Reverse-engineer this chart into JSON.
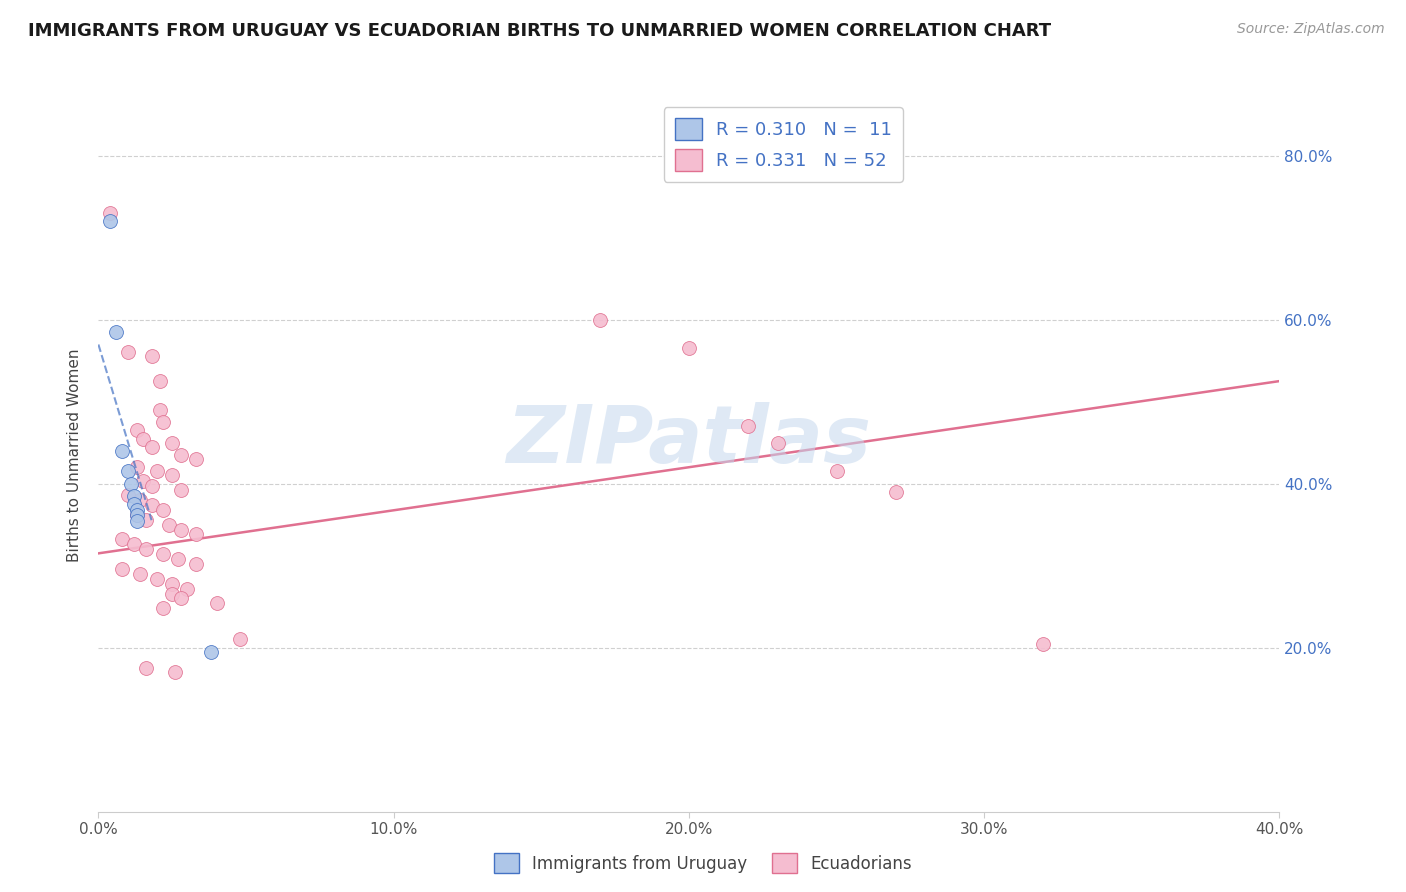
{
  "title": "IMMIGRANTS FROM URUGUAY VS ECUADORIAN BIRTHS TO UNMARRIED WOMEN CORRELATION CHART",
  "source": "Source: ZipAtlas.com",
  "ylabel": "Births to Unmarried Women",
  "legend1_R": "0.310",
  "legend1_N": "11",
  "legend2_R": "0.331",
  "legend2_N": "52",
  "blue_color": "#aec6e8",
  "pink_color": "#f5bdd0",
  "blue_line_color": "#4472c4",
  "pink_line_color": "#e07090",
  "blue_scatter": [
    [
      0.004,
      0.72
    ],
    [
      0.006,
      0.585
    ],
    [
      0.008,
      0.44
    ],
    [
      0.01,
      0.415
    ],
    [
      0.011,
      0.4
    ],
    [
      0.012,
      0.385
    ],
    [
      0.012,
      0.375
    ],
    [
      0.013,
      0.368
    ],
    [
      0.013,
      0.362
    ],
    [
      0.013,
      0.355
    ],
    [
      0.038,
      0.195
    ]
  ],
  "pink_scatter": [
    [
      0.004,
      0.73
    ],
    [
      0.01,
      0.56
    ],
    [
      0.018,
      0.555
    ],
    [
      0.021,
      0.525
    ],
    [
      0.021,
      0.49
    ],
    [
      0.022,
      0.475
    ],
    [
      0.013,
      0.465
    ],
    [
      0.015,
      0.455
    ],
    [
      0.025,
      0.45
    ],
    [
      0.018,
      0.445
    ],
    [
      0.028,
      0.435
    ],
    [
      0.033,
      0.43
    ],
    [
      0.013,
      0.42
    ],
    [
      0.02,
      0.415
    ],
    [
      0.025,
      0.41
    ],
    [
      0.015,
      0.403
    ],
    [
      0.018,
      0.397
    ],
    [
      0.028,
      0.392
    ],
    [
      0.01,
      0.386
    ],
    [
      0.014,
      0.38
    ],
    [
      0.018,
      0.374
    ],
    [
      0.022,
      0.368
    ],
    [
      0.013,
      0.362
    ],
    [
      0.016,
      0.356
    ],
    [
      0.024,
      0.35
    ],
    [
      0.028,
      0.344
    ],
    [
      0.033,
      0.338
    ],
    [
      0.008,
      0.332
    ],
    [
      0.012,
      0.326
    ],
    [
      0.016,
      0.32
    ],
    [
      0.022,
      0.314
    ],
    [
      0.027,
      0.308
    ],
    [
      0.033,
      0.302
    ],
    [
      0.008,
      0.296
    ],
    [
      0.014,
      0.29
    ],
    [
      0.02,
      0.284
    ],
    [
      0.025,
      0.278
    ],
    [
      0.03,
      0.272
    ],
    [
      0.025,
      0.266
    ],
    [
      0.028,
      0.26
    ],
    [
      0.04,
      0.254
    ],
    [
      0.022,
      0.248
    ],
    [
      0.048,
      0.21
    ],
    [
      0.016,
      0.175
    ],
    [
      0.026,
      0.17
    ],
    [
      0.17,
      0.6
    ],
    [
      0.2,
      0.565
    ],
    [
      0.22,
      0.47
    ],
    [
      0.23,
      0.45
    ],
    [
      0.25,
      0.415
    ],
    [
      0.27,
      0.39
    ],
    [
      0.32,
      0.205
    ]
  ],
  "watermark": "ZIPatlas",
  "xlim": [
    0.0,
    0.4
  ],
  "ylim": [
    0.0,
    0.87
  ],
  "pink_line_x": [
    0.0,
    0.4
  ],
  "pink_line_y": [
    0.315,
    0.525
  ],
  "blue_line_x_start": 0.0,
  "blue_line_x_end": 0.018,
  "grid_yticks": [
    0.2,
    0.4,
    0.6,
    0.8
  ],
  "xticks": [
    0.0,
    0.1,
    0.2,
    0.3,
    0.4
  ]
}
